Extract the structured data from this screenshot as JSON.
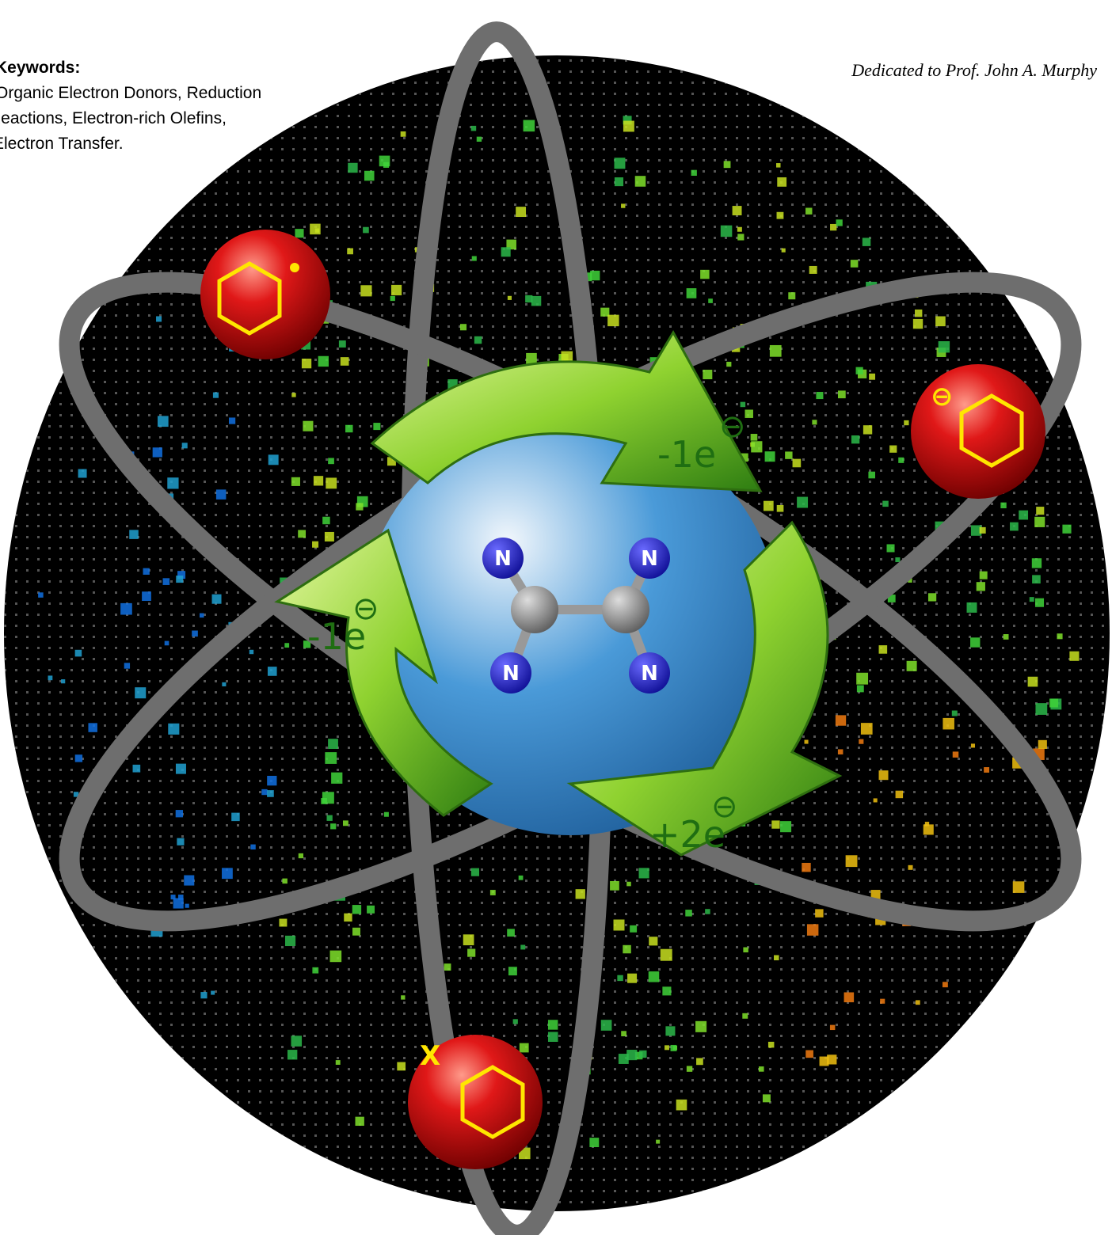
{
  "header": {
    "keywords_title": "Keywords:",
    "keywords": [
      "Organic Electron Donors, Reduction",
      "Reactions, Electron-rich Olefins,",
      "Electron Transfer."
    ],
    "dedication": "Dedicated to Prof. John A. Murphy"
  },
  "arrows": [
    {
      "label": "-1e",
      "charge": "⊖"
    },
    {
      "label": "-1e",
      "charge": "⊖"
    },
    {
      "label": "+2e",
      "charge": "⊖"
    }
  ],
  "atoms": [
    "N",
    "N",
    "N",
    "N"
  ],
  "spheres": [
    {
      "charge": "⊖"
    },
    {
      "substituent": "X"
    }
  ]
}
